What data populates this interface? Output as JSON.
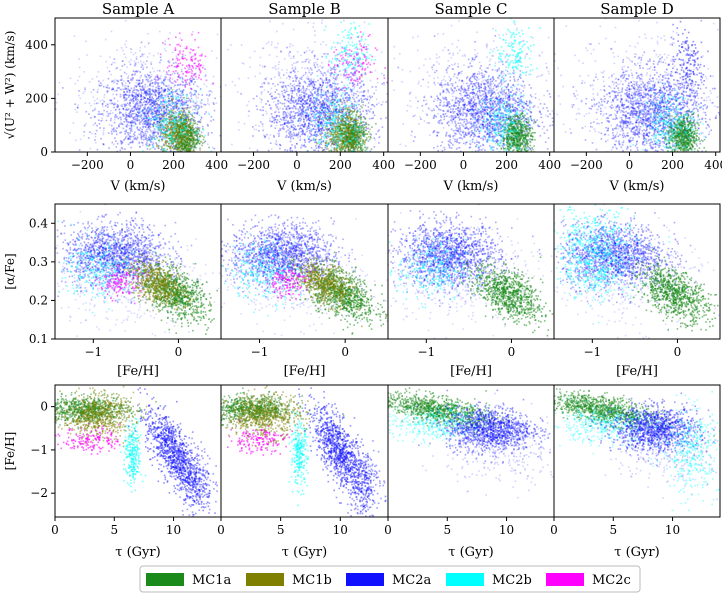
{
  "chart_data": {
    "type": "scatter",
    "title": "",
    "samples": [
      "Sample A",
      "Sample B",
      "Sample C",
      "Sample D"
    ],
    "rows": [
      {
        "name": "toomre",
        "xlabel": "V (km/s)",
        "ylabel": "√(U² + W²) (km/s)",
        "xlim": [
          -350,
          420
        ],
        "ylim": [
          0,
          500
        ],
        "xticks": [
          -200,
          0,
          200,
          400
        ],
        "xticklabels": [
          "−200",
          "0",
          "200",
          "400"
        ],
        "yticks": [
          0,
          200,
          400
        ],
        "yticklabels": [
          "0",
          "200",
          "400"
        ]
      },
      {
        "name": "alpha-fe",
        "xlabel": "[Fe/H]",
        "ylabel": "[α/Fe]",
        "xlim": [
          -1.45,
          0.5
        ],
        "ylim": [
          0.1,
          0.45
        ],
        "xticks": [
          -1,
          0
        ],
        "xticklabels": [
          "−1",
          "0"
        ],
        "yticks": [
          0.1,
          0.2,
          0.3,
          0.4
        ],
        "yticklabels": [
          "0.1",
          "0.2",
          "0.3",
          "0.4"
        ]
      },
      {
        "name": "age-metallicity",
        "xlabel": "τ (Gyr)",
        "ylabel": "[Fe/H]",
        "xlim": [
          0,
          14
        ],
        "ylim": [
          -2.55,
          0.5
        ],
        "xticks": [
          0,
          5,
          10
        ],
        "xticklabels": [
          "0",
          "5",
          "10"
        ],
        "yticks": [
          -2,
          -1,
          0
        ],
        "yticklabels": [
          "−2",
          "−1",
          "0"
        ]
      }
    ],
    "series": [
      {
        "name": "MC1a",
        "color": "#1a8a1a"
      },
      {
        "name": "MC1b",
        "color": "#808000"
      },
      {
        "name": "MC2a",
        "color": "#1010ff"
      },
      {
        "name": "MC2b",
        "color": "#00ffff"
      },
      {
        "name": "MC2c",
        "color": "#ff00ff"
      }
    ],
    "clusters": [
      {
        "row": 0,
        "samples": [
          0,
          1,
          2,
          3
        ],
        "series": 2,
        "cx": 100,
        "cy": 150,
        "sx": 120,
        "sy": 80,
        "n": 1400,
        "alpha": 0.35
      },
      {
        "row": 0,
        "samples": [
          0,
          1,
          2,
          3
        ],
        "series": 2,
        "cx": 60,
        "cy": 220,
        "sx": 170,
        "sy": 110,
        "n": 500,
        "alpha": 0.18
      },
      {
        "row": 0,
        "samples": [
          0,
          1,
          2,
          3
        ],
        "series": 0,
        "cx": 245,
        "cy": 60,
        "sx": 35,
        "sy": 40,
        "n": 600,
        "alpha": 0.5
      },
      {
        "row": 0,
        "samples": [
          0,
          1
        ],
        "series": 1,
        "cx": 210,
        "cy": 70,
        "sx": 45,
        "sy": 50,
        "n": 500,
        "alpha": 0.45
      },
      {
        "row": 0,
        "samples": [
          0,
          1,
          2,
          3
        ],
        "series": 3,
        "cx": 180,
        "cy": 110,
        "sx": 60,
        "sy": 60,
        "n": 250,
        "alpha": 0.45
      },
      {
        "row": 0,
        "samples": [
          0,
          1
        ],
        "series": 4,
        "cx": 260,
        "cy": 330,
        "sx": 50,
        "sy": 50,
        "n": 130,
        "alpha": 0.55
      },
      {
        "row": 0,
        "samples": [
          1,
          2
        ],
        "series": 3,
        "cx": 240,
        "cy": 370,
        "sx": 45,
        "sy": 55,
        "n": 150,
        "alpha": 0.5
      },
      {
        "row": 0,
        "samples": [
          3
        ],
        "series": 2,
        "cx": 260,
        "cy": 320,
        "sx": 40,
        "sy": 80,
        "n": 180,
        "alpha": 0.45
      },
      {
        "row": 1,
        "samples": [
          0,
          1,
          2,
          3
        ],
        "series": 2,
        "cx": -0.75,
        "cy": 0.32,
        "sx": 0.3,
        "sy": 0.04,
        "n": 1400,
        "alpha": 0.35
      },
      {
        "row": 1,
        "samples": [
          0,
          1,
          2,
          3
        ],
        "series": 2,
        "cx": -0.6,
        "cy": 0.25,
        "sx": 0.45,
        "sy": 0.06,
        "n": 400,
        "alpha": 0.15
      },
      {
        "row": 1,
        "samples": [
          0,
          1,
          2,
          3
        ],
        "series": 0,
        "cx": -0.05,
        "cy": 0.22,
        "sx": 0.2,
        "sy": 0.03,
        "n": 800,
        "alpha": 0.55,
        "slope": -0.09
      },
      {
        "row": 1,
        "samples": [
          0,
          1
        ],
        "series": 1,
        "cx": -0.25,
        "cy": 0.245,
        "sx": 0.17,
        "sy": 0.025,
        "n": 550,
        "alpha": 0.5,
        "slope": -0.08
      },
      {
        "row": 1,
        "samples": [
          0,
          1,
          2,
          3
        ],
        "series": 3,
        "cx": -0.95,
        "cy": 0.28,
        "sx": 0.2,
        "sy": 0.04,
        "n": 260,
        "alpha": 0.45
      },
      {
        "row": 1,
        "samples": [
          3
        ],
        "series": 3,
        "cx": -1.0,
        "cy": 0.35,
        "sx": 0.25,
        "sy": 0.05,
        "n": 400,
        "alpha": 0.45
      },
      {
        "row": 1,
        "samples": [
          0,
          1
        ],
        "series": 4,
        "cx": -0.7,
        "cy": 0.25,
        "sx": 0.12,
        "sy": 0.02,
        "n": 120,
        "alpha": 0.6
      },
      {
        "row": 2,
        "samples": [
          0,
          1
        ],
        "series": 0,
        "cx": 2.5,
        "cy": -0.05,
        "sx": 1.8,
        "sy": 0.15,
        "n": 700,
        "alpha": 0.5
      },
      {
        "row": 2,
        "samples": [
          0,
          1
        ],
        "series": 1,
        "cx": 3.5,
        "cy": -0.2,
        "sx": 1.5,
        "sy": 0.25,
        "n": 600,
        "alpha": 0.5
      },
      {
        "row": 2,
        "samples": [
          0,
          1
        ],
        "series": 4,
        "cx": 3.0,
        "cy": -0.75,
        "sx": 1.2,
        "sy": 0.15,
        "n": 150,
        "alpha": 0.6
      },
      {
        "row": 2,
        "samples": [
          0,
          1
        ],
        "series": 3,
        "cx": 6.5,
        "cy": -1.1,
        "sx": 0.35,
        "sy": 0.35,
        "n": 250,
        "alpha": 0.5
      },
      {
        "row": 2,
        "samples": [
          0,
          1
        ],
        "series": 2,
        "cx": 9.8,
        "cy": -1.0,
        "sx": 1.1,
        "sy": 0.35,
        "n": 900,
        "alpha": 0.45,
        "slope": -0.3
      },
      {
        "row": 2,
        "samples": [
          0,
          1
        ],
        "series": 2,
        "cx": 11.8,
        "cy": -1.7,
        "sx": 0.7,
        "sy": 0.4,
        "n": 300,
        "alpha": 0.4
      },
      {
        "row": 2,
        "samples": [
          2,
          3
        ],
        "series": 0,
        "cx": 4.0,
        "cy": -0.05,
        "sx": 2.2,
        "sy": 0.15,
        "n": 900,
        "alpha": 0.5,
        "slope": -0.05
      },
      {
        "row": 2,
        "samples": [
          2,
          3
        ],
        "series": 3,
        "cx": 4.0,
        "cy": -0.4,
        "sx": 2.2,
        "sy": 0.2,
        "n": 400,
        "alpha": 0.35
      },
      {
        "row": 2,
        "samples": [
          2,
          3
        ],
        "series": 2,
        "cx": 8.5,
        "cy": -0.5,
        "sx": 1.8,
        "sy": 0.25,
        "n": 1100,
        "alpha": 0.4
      },
      {
        "row": 2,
        "samples": [
          2,
          3
        ],
        "series": 2,
        "cx": 10,
        "cy": -1.0,
        "sx": 2.5,
        "sy": 0.4,
        "n": 300,
        "alpha": 0.18
      },
      {
        "row": 2,
        "samples": [
          3
        ],
        "series": 3,
        "cx": 11.5,
        "cy": -1.0,
        "sx": 1.2,
        "sy": 0.5,
        "n": 350,
        "alpha": 0.4
      }
    ]
  }
}
